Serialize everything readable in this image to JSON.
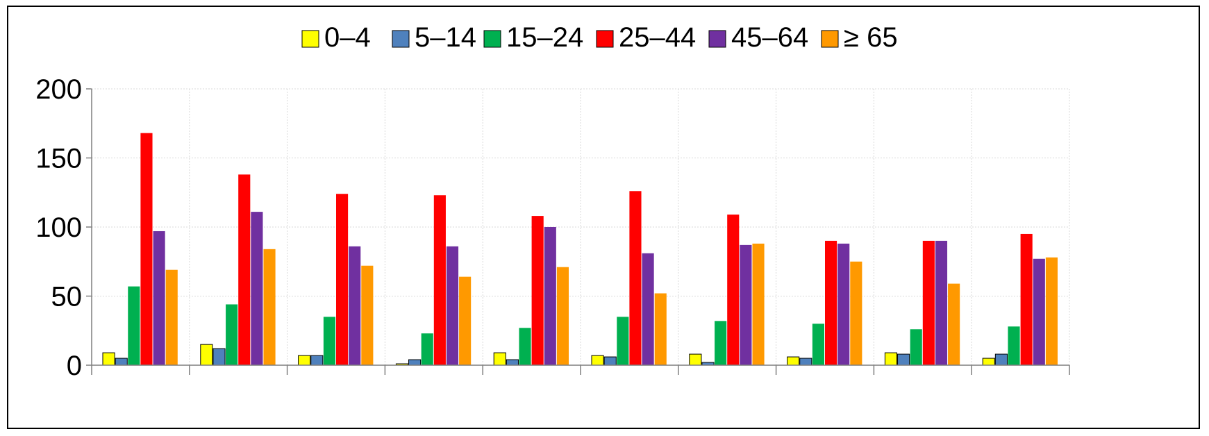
{
  "chart_data": {
    "type": "bar",
    "title": "",
    "xlabel": "",
    "ylabel": "",
    "ylim": [
      0,
      200
    ],
    "yticks": [
      "0",
      "50",
      "100",
      "150",
      "200"
    ],
    "grid": true,
    "legend_position": "top",
    "categories": [
      "",
      "",
      "",
      "",
      "",
      "",
      "",
      "",
      "",
      ""
    ],
    "series": [
      {
        "name": "0–4",
        "color": "#FFFF00",
        "values": [
          9,
          15,
          7,
          1,
          9,
          7,
          8,
          6,
          9,
          5
        ]
      },
      {
        "name": "5–14",
        "color": "#4F81BD",
        "values": [
          5,
          12,
          7,
          4,
          4,
          6,
          2,
          5,
          8,
          8
        ]
      },
      {
        "name": "15–24",
        "color": "#00B050",
        "values": [
          57,
          44,
          35,
          23,
          27,
          35,
          32,
          30,
          26,
          28
        ]
      },
      {
        "name": "25–44",
        "color": "#FF0000",
        "values": [
          168,
          138,
          124,
          123,
          108,
          126,
          109,
          90,
          90,
          95
        ]
      },
      {
        "name": "45–64",
        "color": "#7030A0",
        "values": [
          97,
          111,
          86,
          86,
          100,
          81,
          87,
          88,
          90,
          77
        ]
      },
      {
        "name": "≥ 65",
        "color": "#FF9900",
        "values": [
          69,
          84,
          72,
          64,
          71,
          52,
          88,
          75,
          59,
          78
        ]
      }
    ]
  }
}
